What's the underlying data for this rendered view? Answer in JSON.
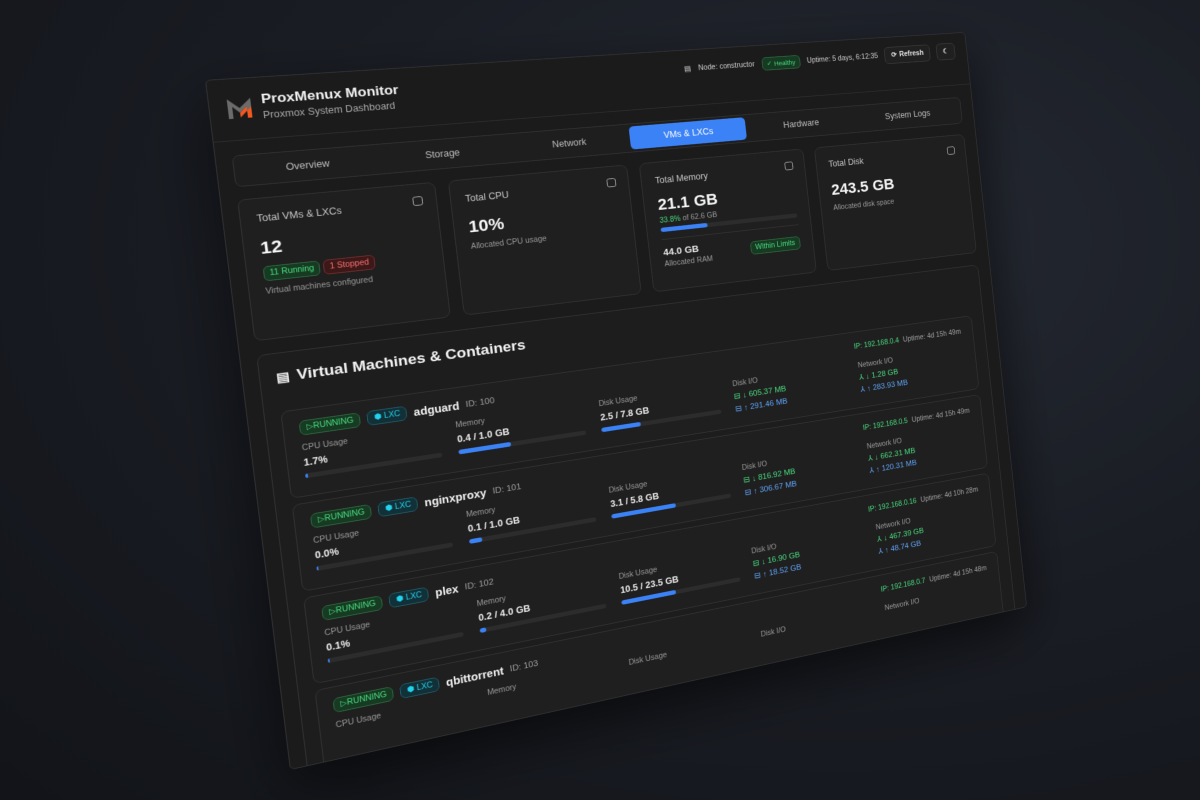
{
  "app": {
    "title": "ProxMenux Monitor",
    "subtitle": "Proxmox System Dashboard"
  },
  "header": {
    "node_label": "Node: constructor",
    "health": "Healthy",
    "uptime": "Uptime: 5 days, 6:12:35",
    "refresh_label": "Refresh",
    "theme_icon": "moon-icon"
  },
  "tabs": [
    {
      "label": "Overview"
    },
    {
      "label": "Storage"
    },
    {
      "label": "Network"
    },
    {
      "label": "VMs & LXCs",
      "active": true
    },
    {
      "label": "Hardware"
    },
    {
      "label": "System Logs"
    }
  ],
  "stats": {
    "vms": {
      "title": "Total VMs & LXCs",
      "value": "12",
      "running": "11 Running",
      "stopped": "1 Stopped",
      "sub": "Virtual machines configured"
    },
    "cpu": {
      "title": "Total CPU",
      "value": "10%",
      "sub": "Allocated CPU usage"
    },
    "memory": {
      "title": "Total Memory",
      "value": "21.1 GB",
      "pct": "33.8%",
      "of": "of 62.6 GB",
      "fill_percent": 33.8,
      "alloc": "44.0 GB",
      "alloc_label": "Allocated RAM",
      "status": "Within Limits"
    },
    "disk": {
      "title": "Total Disk",
      "value": "243.5 GB",
      "sub": "Allocated disk space"
    }
  },
  "section": {
    "title": "Virtual Machines & Containers"
  },
  "labels": {
    "cpu": "CPU Usage",
    "memory": "Memory",
    "disk": "Disk Usage",
    "disk_io": "Disk I/O",
    "net_io": "Network I/O"
  },
  "colors": {
    "accent": "#3b82f6",
    "running": "#4ade80",
    "stopped": "#f87171",
    "lxc": "#22d3ee"
  },
  "vms": [
    {
      "status": "RUNNING",
      "type": "LXC",
      "name": "adguard",
      "id": "ID: 100",
      "ip": "IP: 192.168.0.4",
      "uptime": "Uptime: 4d 15h 49m",
      "cpu": "1.7%",
      "cpu_pct": 1.7,
      "mem": "0.4 / 1.0 GB",
      "mem_pct": 40,
      "disk": "2.5 / 7.8 GB",
      "disk_pct": 32,
      "disk_read": "↓ 605.37 MB",
      "disk_write": "↑ 291.46 MB",
      "net_in": "↓ 1.28 GB",
      "net_out": "↑ 283.93 MB"
    },
    {
      "status": "RUNNING",
      "type": "LXC",
      "name": "nginxproxy",
      "id": "ID: 101",
      "ip": "IP: 192.168.0.5",
      "uptime": "Uptime: 4d 15h 49m",
      "cpu": "0.0%",
      "cpu_pct": 0,
      "mem": "0.1 / 1.0 GB",
      "mem_pct": 10,
      "disk": "3.1 / 5.8 GB",
      "disk_pct": 53,
      "disk_read": "↓ 816.92 MB",
      "disk_write": "↑ 306.67 MB",
      "net_in": "↓ 662.31 MB",
      "net_out": "↑ 120.31 MB"
    },
    {
      "status": "RUNNING",
      "type": "LXC",
      "name": "plex",
      "id": "ID: 102",
      "ip": "IP: 192.168.0.16",
      "uptime": "Uptime: 4d 10h 28m",
      "cpu": "0.1%",
      "cpu_pct": 0.1,
      "mem": "0.2 / 4.0 GB",
      "mem_pct": 5,
      "disk": "10.5 / 23.5 GB",
      "disk_pct": 45,
      "disk_read": "↓ 16.90 GB",
      "disk_write": "↑ 18.52 GB",
      "net_in": "↓ 467.39 GB",
      "net_out": "↑ 48.74 GB"
    },
    {
      "status": "RUNNING",
      "type": "LXC",
      "name": "qbittorrent",
      "id": "ID: 103",
      "ip": "IP: 192.168.0.7",
      "uptime": "Uptime: 4d 15h 48m"
    }
  ]
}
